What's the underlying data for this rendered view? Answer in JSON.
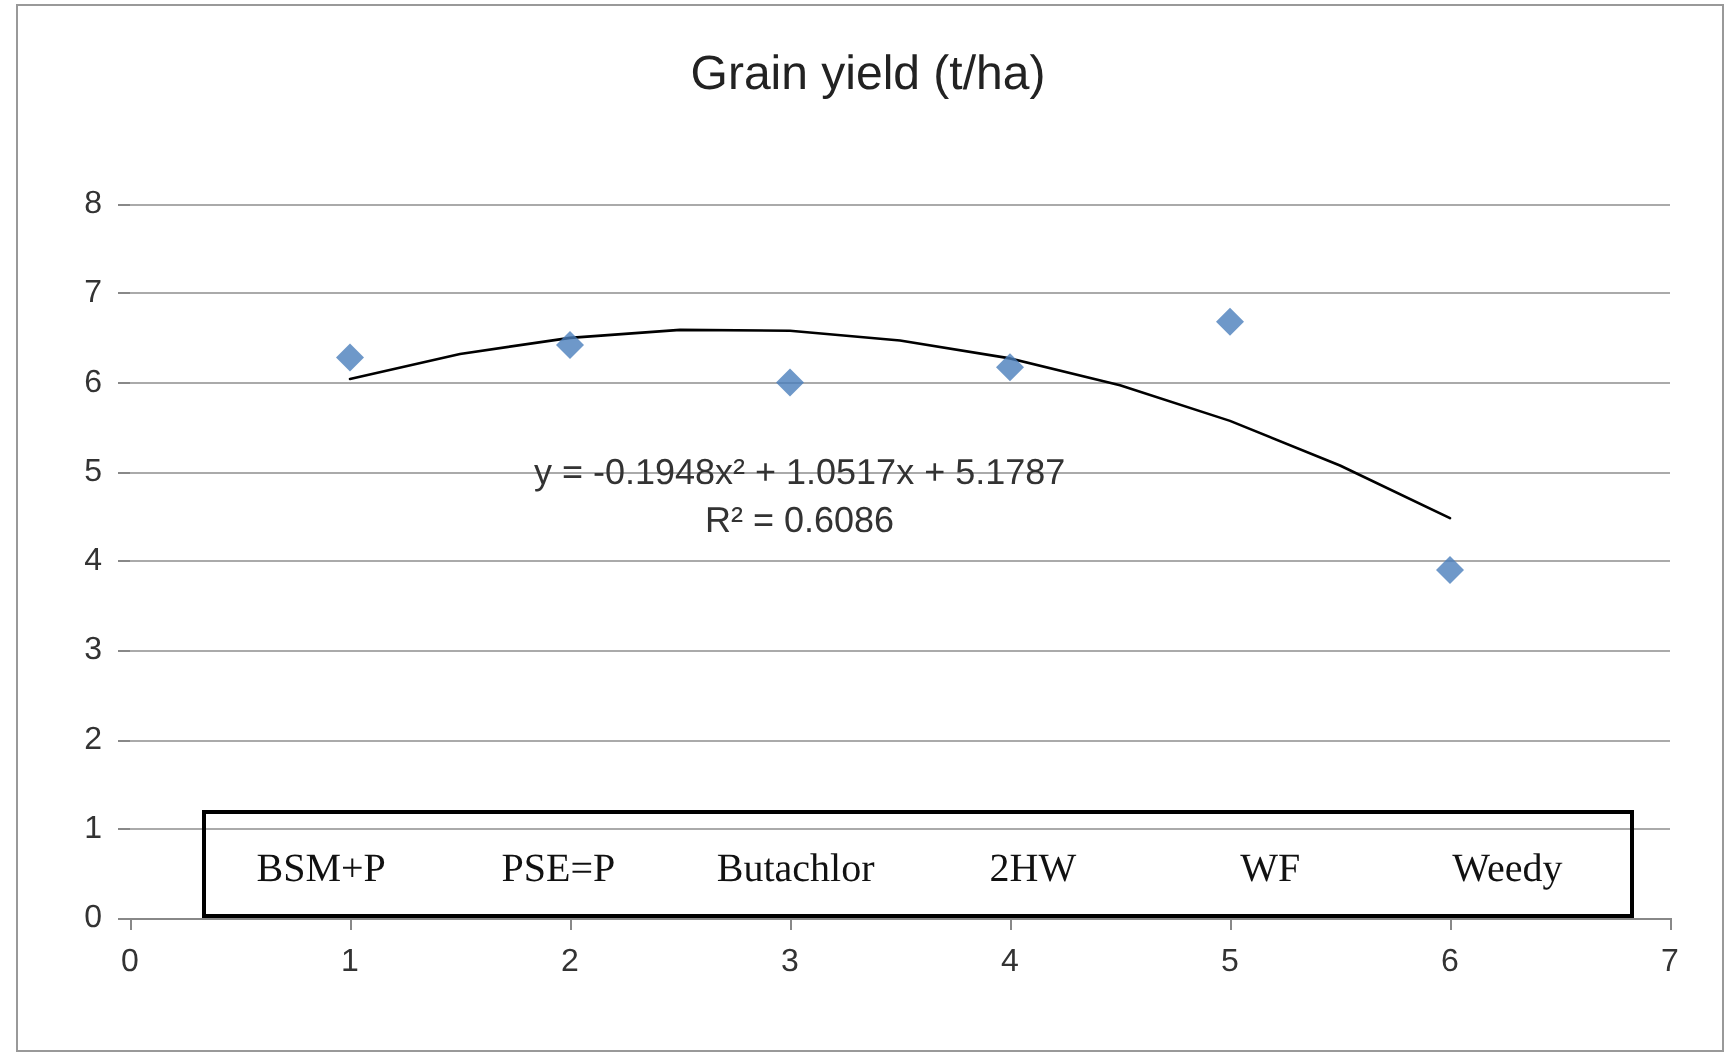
{
  "chart_data": {
    "type": "scatter",
    "title": "Grain yield (t/ha)",
    "x": [
      1,
      2,
      3,
      4,
      5,
      6
    ],
    "series": [
      {
        "color": "#4a7ebb",
        "marker": "diamond",
        "values": [
          6.28,
          6.42,
          6.0,
          6.17,
          6.68,
          3.9
        ]
      },
      {
        "type": "line",
        "color": "#000000",
        "marker": "none",
        "x": [
          1,
          1.5,
          2,
          2.5,
          3,
          3.5,
          4,
          4.5,
          5,
          5.5,
          6
        ],
        "values": [
          6.04,
          6.32,
          6.5,
          6.59,
          6.58,
          6.47,
          6.27,
          5.97,
          5.57,
          5.07,
          4.48
        ]
      }
    ],
    "xlim": [
      0,
      7
    ],
    "xticks": [
      0,
      1,
      2,
      3,
      4,
      5,
      6,
      7
    ],
    "ylim": [
      0,
      8
    ],
    "yticks": [
      0,
      1,
      2,
      3,
      4,
      5,
      6,
      7,
      8
    ],
    "grid": "y",
    "annotations": [
      "BSM+P",
      "PSE=P",
      "Butachlor",
      "2HW",
      "WF",
      "Weedy",
      "y = -0.1948x² + 1.0517x + 5.1787",
      "R² = 0.6086"
    ]
  }
}
